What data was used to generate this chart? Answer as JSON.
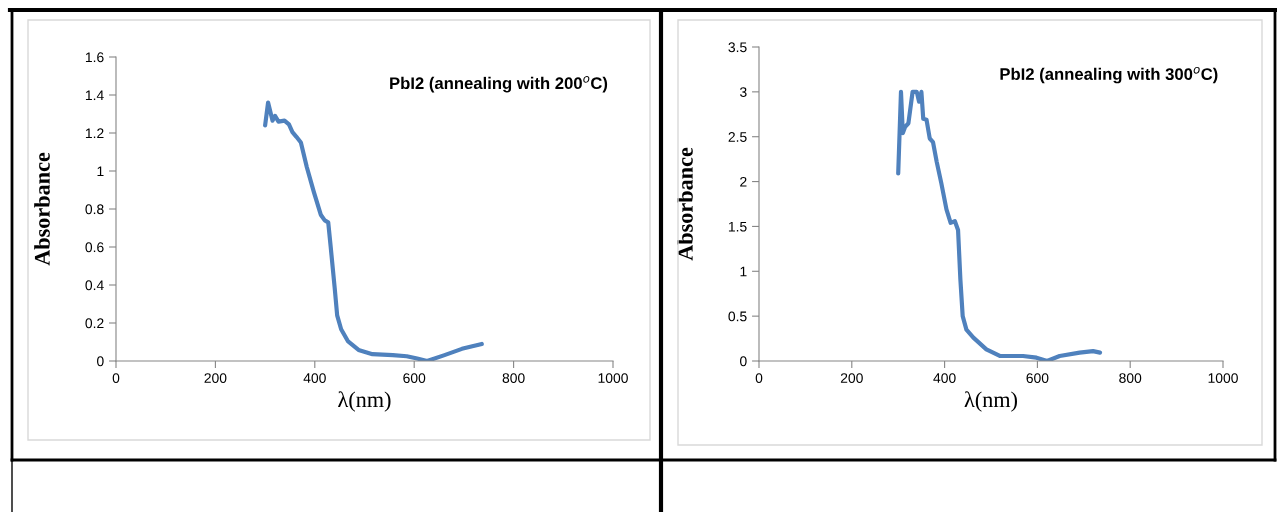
{
  "chart_data": [
    {
      "type": "line",
      "title": "PbI2 (annealing with 200$^{o}$C)",
      "xlabel": "λ(nm)",
      "ylabel": "Absorbance",
      "xlim": [
        0,
        1000
      ],
      "xticks": [
        0,
        200,
        400,
        600,
        800,
        1000
      ],
      "ylim": [
        0,
        1.6
      ],
      "yticks": [
        0,
        0.2,
        0.4,
        0.6,
        0.8,
        1,
        1.2,
        1.4,
        1.6
      ],
      "grid": false,
      "legend": false,
      "marker": "none",
      "line_style": "solid",
      "series": [
        {
          "color": "#4f81bd",
          "x": [
            300,
            306,
            315,
            320,
            327,
            339,
            348,
            355,
            363,
            372,
            384,
            398,
            412,
            420,
            427,
            432,
            440,
            445,
            453,
            467,
            488,
            516,
            557,
            585,
            606,
            626,
            661,
            696,
            736
          ],
          "values": [
            1.24,
            1.36,
            1.265,
            1.29,
            1.26,
            1.265,
            1.245,
            1.205,
            1.18,
            1.15,
            1.02,
            0.89,
            0.77,
            0.74,
            0.73,
            0.6,
            0.385,
            0.24,
            0.167,
            0.103,
            0.058,
            0.036,
            0.031,
            0.025,
            0.013,
            0,
            0.031,
            0.064,
            0.09
          ]
        }
      ]
    },
    {
      "type": "line",
      "title": "PbI2 (annealing with 300$^{o}$C)",
      "xlabel": "λ(nm)",
      "ylabel": "Absorbance",
      "xlim": [
        0,
        1000
      ],
      "xticks": [
        0,
        200,
        400,
        600,
        800,
        1000
      ],
      "ylim": [
        0,
        3.5
      ],
      "yticks": [
        0,
        0.5,
        1,
        1.5,
        2,
        2.5,
        3,
        3.5
      ],
      "grid": false,
      "legend": false,
      "marker": "none",
      "line_style": "solid",
      "series": [
        {
          "color": "#4f81bd",
          "x": [
            300,
            306,
            310,
            315,
            322,
            331,
            340,
            345,
            350,
            354,
            361,
            368,
            375,
            383,
            393,
            404,
            413,
            422,
            429,
            434,
            439,
            447,
            462,
            490,
            519,
            569,
            598,
            621,
            648,
            691,
            720,
            735
          ],
          "values": [
            2.09,
            3.0,
            2.54,
            2.61,
            2.65,
            3.0,
            3.0,
            2.89,
            3.0,
            2.7,
            2.69,
            2.48,
            2.44,
            2.22,
            1.98,
            1.69,
            1.54,
            1.56,
            1.46,
            0.91,
            0.5,
            0.35,
            0.26,
            0.13,
            0.056,
            0.056,
            0.037,
            0,
            0.056,
            0.093,
            0.11,
            0.093
          ]
        }
      ]
    }
  ]
}
